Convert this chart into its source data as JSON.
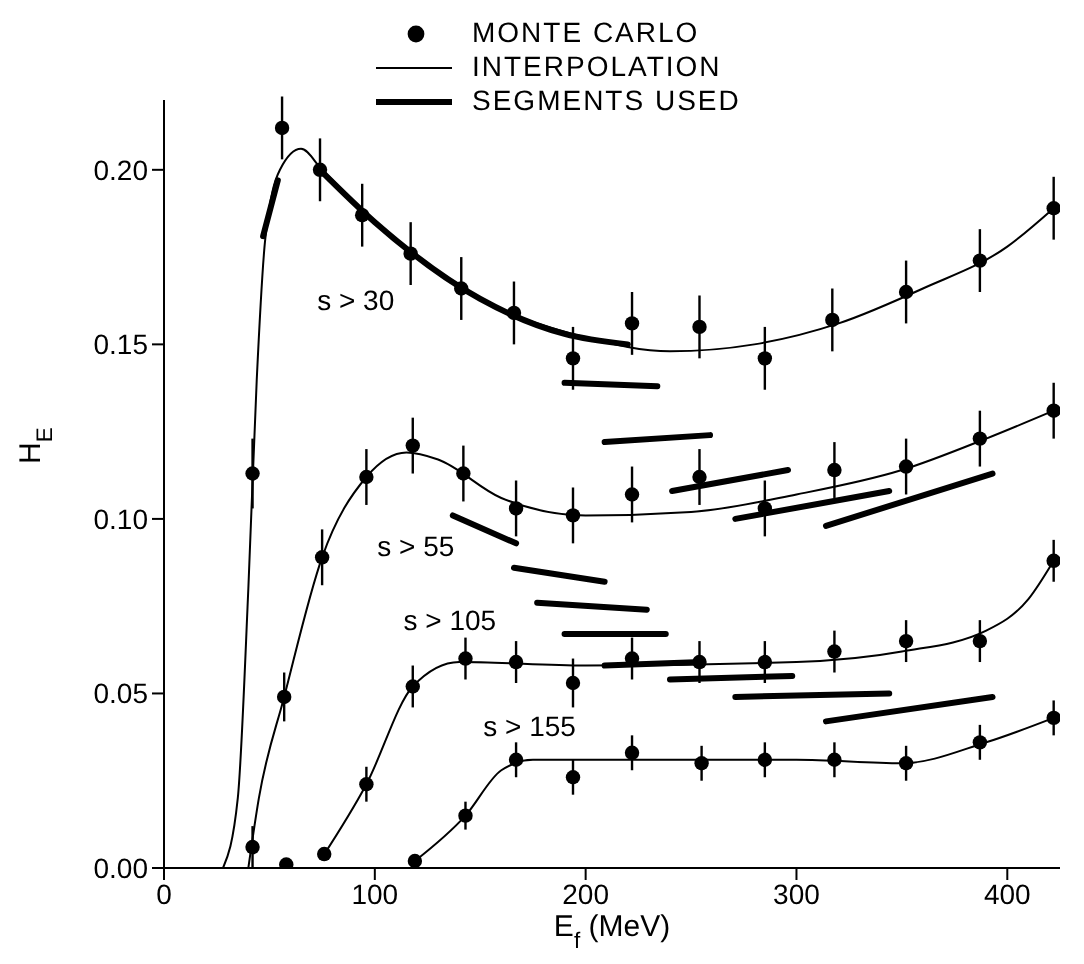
{
  "chart_data": {
    "type": "line",
    "xlabel": "E$_{f}$ (MeV)",
    "ylabel": "H$_{E}$",
    "xlim": [
      0,
      425
    ],
    "xticks": [
      0,
      100,
      200,
      300,
      400
    ],
    "ylim": [
      0,
      0.22
    ],
    "yticks": [
      {
        "value": 0,
        "label": "0.00"
      },
      {
        "value": 0.05,
        "label": "0.05"
      },
      {
        "value": 0.1,
        "label": "0.10"
      },
      {
        "value": 0.15,
        "label": "0.15"
      },
      {
        "value": 0.2,
        "label": "0.20"
      }
    ],
    "grid": false,
    "legend": "top",
    "series": [
      {
        "name": "MONTE CARLO",
        "type": "scatter",
        "marker": "circle",
        "color": "#000000",
        "x": [
          42,
          56,
          74,
          94,
          117,
          141,
          166,
          194,
          222,
          254,
          285,
          317,
          352,
          387,
          422,
          42,
          57,
          75,
          96,
          118,
          142,
          167,
          194,
          222,
          254,
          285,
          318,
          352,
          387,
          422,
          58,
          76,
          96,
          118,
          143,
          167,
          194,
          222,
          254,
          285,
          318,
          352,
          387,
          422,
          119,
          143,
          167,
          194,
          222,
          255,
          285,
          318,
          352,
          387,
          422
        ],
        "values": [
          0.113,
          0.212,
          0.2,
          0.187,
          0.176,
          0.166,
          0.159,
          0.146,
          0.156,
          0.155,
          0.146,
          0.157,
          0.165,
          0.174,
          0.189,
          0.006,
          0.049,
          0.089,
          0.112,
          0.121,
          0.113,
          0.103,
          0.101,
          0.107,
          0.112,
          0.103,
          0.114,
          0.115,
          0.123,
          0.131,
          0.001,
          0.004,
          0.024,
          0.052,
          0.06,
          0.059,
          0.053,
          0.06,
          0.059,
          0.059,
          0.062,
          0.065,
          0.065,
          0.088,
          0.002,
          0.015,
          0.031,
          0.026,
          0.033,
          0.03,
          0.031,
          0.031,
          0.03,
          0.036,
          0.043
        ],
        "errors": [
          0.01,
          0.009,
          0.009,
          0.009,
          0.009,
          0.009,
          0.009,
          0.009,
          0.009,
          0.009,
          0.009,
          0.009,
          0.009,
          0.009,
          0.009,
          0.006,
          0.007,
          0.008,
          0.008,
          0.008,
          0.008,
          0.008,
          0.008,
          0.008,
          0.008,
          0.008,
          0.008,
          0.008,
          0.008,
          0.008,
          null,
          null,
          0.005,
          0.006,
          0.006,
          0.006,
          0.007,
          0.006,
          0.006,
          0.006,
          0.006,
          0.006,
          0.006,
          0.006,
          null,
          0.004,
          0.005,
          0.005,
          0.005,
          0.005,
          0.005,
          0.005,
          0.005,
          0.005,
          0.005
        ]
      },
      {
        "name": "INTERPOLATION",
        "color": "#000000",
        "x": [
          28,
          35,
          40,
          44,
          48,
          55,
          65,
          75,
          100,
          150,
          200,
          240,
          280,
          320,
          360,
          400,
          422
        ],
        "values": [
          0,
          0.02,
          0.08,
          0.14,
          0.18,
          0.2,
          0.206,
          0.2,
          0.185,
          0.163,
          0.152,
          0.148,
          0.15,
          0.156,
          0.166,
          0.178,
          0.189
        ]
      },
      {
        "color": "#000000",
        "x": [
          40,
          45,
          57,
          75,
          96,
          115,
          130,
          160,
          200,
          250,
          300,
          350,
          390,
          422
        ],
        "values": [
          0,
          0.02,
          0.049,
          0.089,
          0.112,
          0.119,
          0.117,
          0.106,
          0.101,
          0.102,
          0.107,
          0.114,
          0.123,
          0.131
        ]
      },
      {
        "color": "#000000",
        "x": [
          75,
          96,
          118,
          140,
          200,
          300,
          350,
          390,
          410,
          422
        ],
        "values": [
          0.003,
          0.024,
          0.052,
          0.059,
          0.058,
          0.059,
          0.062,
          0.068,
          0.077,
          0.088
        ]
      },
      {
        "color": "#000000",
        "x": [
          119,
          143,
          160,
          175,
          300,
          350,
          390,
          422
        ],
        "values": [
          0.002,
          0.015,
          0.028,
          0.031,
          0.031,
          0.03,
          0.036,
          0.043
        ]
      },
      {
        "name": "SEGMENTS USED",
        "color": "#000000",
        "x": [
          47,
          54
        ],
        "values": [
          0.181,
          0.197
        ]
      },
      {
        "color": "#000000",
        "x": [
          74,
          100,
          150,
          190,
          220
        ],
        "values": [
          0.2,
          0.185,
          0.163,
          0.153,
          0.15
        ]
      },
      {
        "color": "#000000",
        "x": [
          190,
          234
        ],
        "values": [
          0.139,
          0.138
        ]
      },
      {
        "color": "#000000",
        "x": [
          209,
          259
        ],
        "values": [
          0.122,
          0.124
        ]
      },
      {
        "color": "#000000",
        "x": [
          241,
          296
        ],
        "values": [
          0.108,
          0.114
        ]
      },
      {
        "color": "#000000",
        "x": [
          271,
          344
        ],
        "values": [
          0.1,
          0.108
        ]
      },
      {
        "color": "#000000",
        "x": [
          314,
          393
        ],
        "values": [
          0.098,
          0.113
        ]
      },
      {
        "color": "#000000",
        "x": [
          137,
          167
        ],
        "values": [
          0.101,
          0.093
        ]
      },
      {
        "color": "#000000",
        "x": [
          166,
          209
        ],
        "values": [
          0.086,
          0.082
        ]
      },
      {
        "color": "#000000",
        "x": [
          177,
          229
        ],
        "values": [
          0.076,
          0.074
        ]
      },
      {
        "color": "#000000",
        "x": [
          190,
          238
        ],
        "values": [
          0.067,
          0.067
        ]
      },
      {
        "color": "#000000",
        "x": [
          209,
          255
        ],
        "values": [
          0.058,
          0.059
        ]
      },
      {
        "color": "#000000",
        "x": [
          240,
          298
        ],
        "values": [
          0.054,
          0.055
        ]
      },
      {
        "color": "#000000",
        "x": [
          271,
          344
        ],
        "values": [
          0.049,
          0.05
        ]
      },
      {
        "color": "#000000",
        "x": [
          314,
          393
        ],
        "values": [
          0.042,
          0.049
        ]
      }
    ],
    "annotations": [
      "s > 30",
      "s > 55",
      "s > 105",
      "s > 155"
    ]
  }
}
